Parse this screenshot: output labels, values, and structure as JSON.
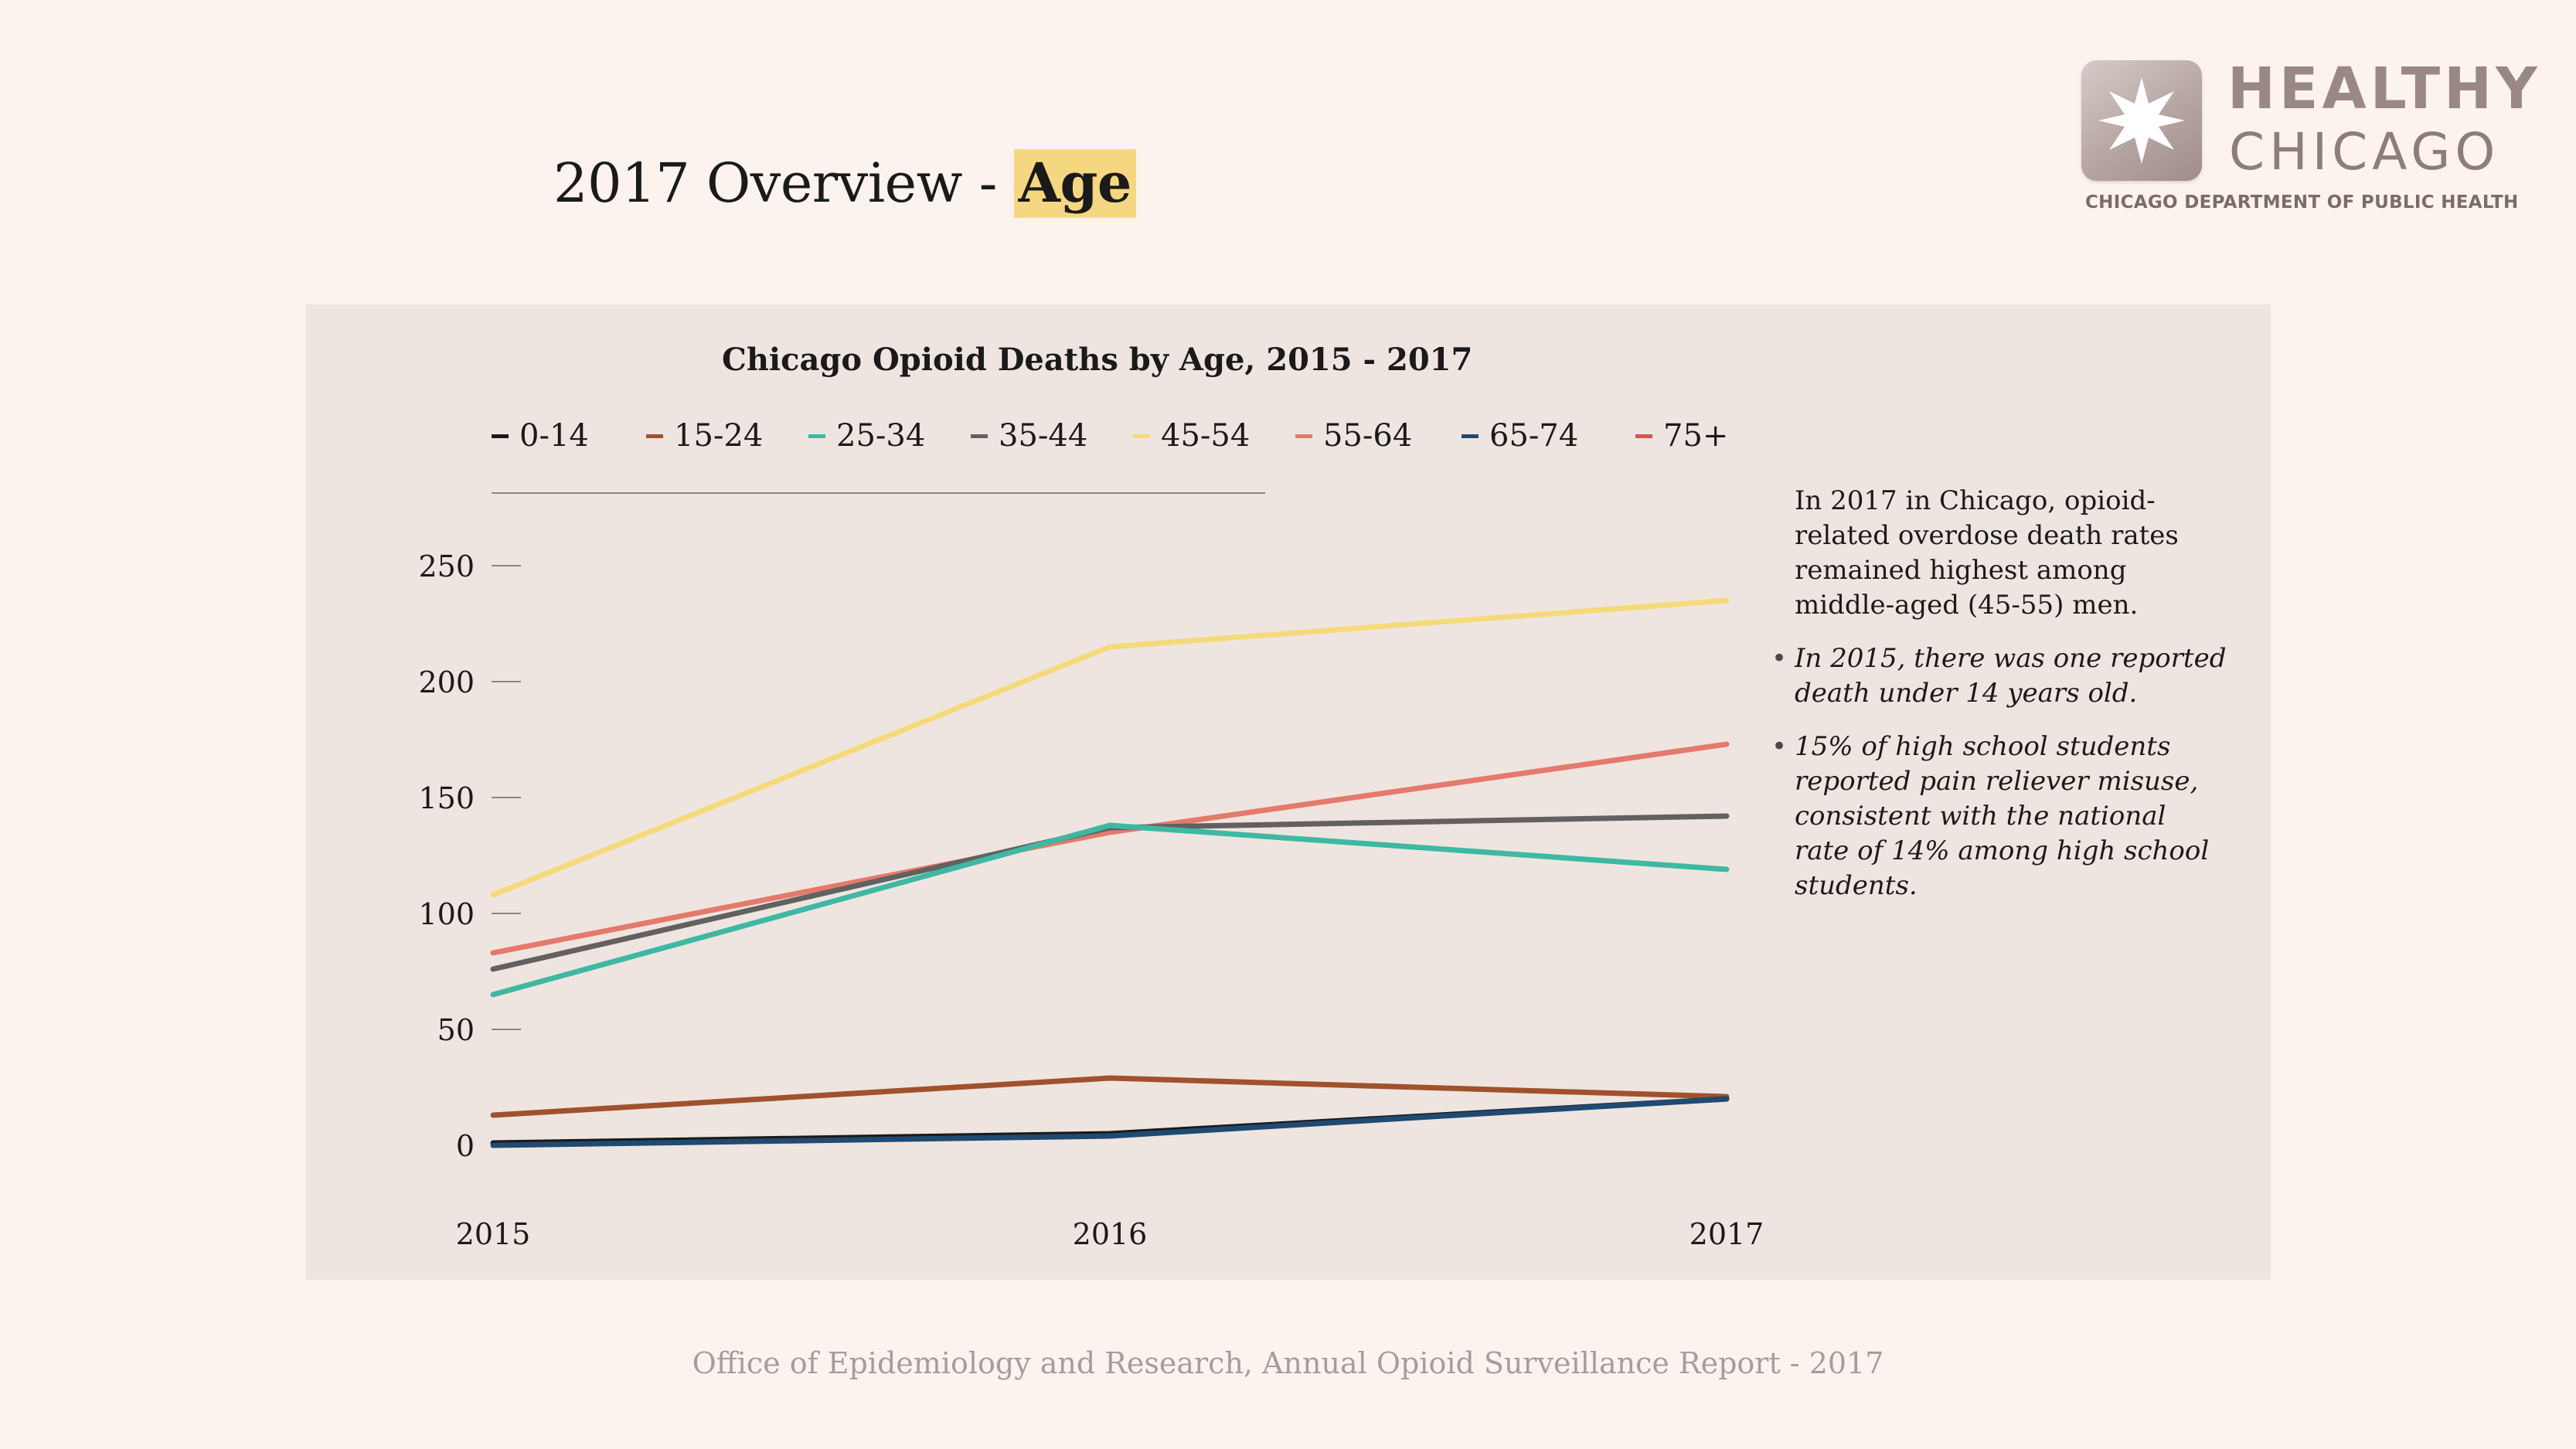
{
  "slide": {
    "title_prefix": "2017 Overview - ",
    "title_highlight": "Age",
    "footer": "Office of Epidemiology and Research, Annual Opioid Surveillance Report - 2017"
  },
  "logo": {
    "line1": "HEALTHY",
    "line2": "CHICAGO",
    "dept": "CHICAGO DEPARTMENT OF PUBLIC HEALTH",
    "icon": "star-icon"
  },
  "annotation": {
    "intro": "In 2017 in Chicago, opioid-related overdose death rates remained highest among middle-aged (45-55) men.",
    "bullets": [
      "In 2015, there was one reported death under 14 years old.",
      "15% of high school students reported pain reliever misuse, consistent with the national rate of 14% among high school students."
    ]
  },
  "chart_data": {
    "type": "line",
    "title": "Chicago Opioid Deaths by Age, 2015 - 2017",
    "x": [
      "2015",
      "2016",
      "2017"
    ],
    "ylim": [
      0,
      250
    ],
    "yticks": [
      0,
      50,
      100,
      150,
      200,
      250
    ],
    "grid": false,
    "legend_position": "top",
    "series": [
      {
        "name": "0-14",
        "color": "#1a1a1a",
        "values": [
          1,
          5,
          20
        ]
      },
      {
        "name": "15-24",
        "color": "#a0522d",
        "values": [
          13,
          29,
          21
        ]
      },
      {
        "name": "25-34",
        "color": "#3fb8a3",
        "values": [
          65,
          138,
          119
        ]
      },
      {
        "name": "35-44",
        "color": "#636060",
        "values": [
          76,
          137,
          142
        ]
      },
      {
        "name": "45-54",
        "color": "#f5da7a",
        "values": [
          108,
          215,
          235
        ]
      },
      {
        "name": "55-64",
        "color": "#e47a6b",
        "values": [
          83,
          135,
          173
        ]
      },
      {
        "name": "65-74",
        "color": "#1f4a72",
        "values": [
          0,
          4,
          20
        ]
      },
      {
        "name": "75+",
        "color": "#d9534f",
        "values": [
          null,
          null,
          null
        ]
      }
    ]
  }
}
